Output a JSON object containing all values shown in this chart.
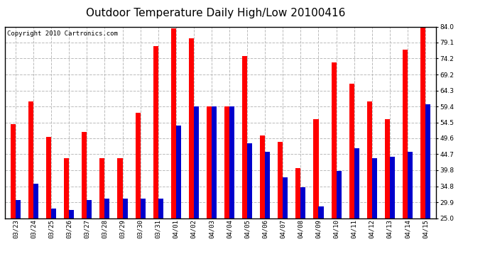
{
  "title": "Outdoor Temperature Daily High/Low 20100416",
  "copyright": "Copyright 2010 Cartronics.com",
  "dates": [
    "03/23",
    "03/24",
    "03/25",
    "03/26",
    "03/27",
    "03/28",
    "03/29",
    "03/30",
    "03/31",
    "04/01",
    "04/02",
    "04/03",
    "04/04",
    "04/05",
    "04/06",
    "04/07",
    "04/08",
    "04/09",
    "04/10",
    "04/11",
    "04/12",
    "04/13",
    "04/14",
    "04/15"
  ],
  "highs": [
    54.0,
    61.0,
    50.0,
    43.5,
    51.5,
    43.5,
    43.5,
    57.5,
    78.0,
    83.5,
    80.5,
    59.5,
    59.5,
    75.0,
    50.5,
    48.5,
    40.5,
    55.5,
    73.0,
    66.5,
    61.0,
    55.5,
    77.0,
    84.0
  ],
  "lows": [
    30.5,
    35.5,
    28.0,
    27.5,
    30.5,
    31.0,
    31.0,
    31.0,
    31.0,
    53.5,
    59.5,
    59.5,
    59.5,
    48.0,
    45.5,
    37.5,
    34.5,
    28.5,
    39.5,
    46.5,
    43.5,
    44.0,
    45.5,
    60.0
  ],
  "high_color": "#ff0000",
  "low_color": "#0000cc",
  "bg_color": "#ffffff",
  "plot_bg_color": "#ffffff",
  "grid_color": "#bbbbbb",
  "ymin": 25.0,
  "ymax": 84.0,
  "yticks": [
    25.0,
    29.9,
    34.8,
    39.8,
    44.7,
    49.6,
    54.5,
    59.4,
    64.3,
    69.2,
    74.2,
    79.1,
    84.0
  ],
  "title_fontsize": 11,
  "copyright_fontsize": 6.5,
  "tick_fontsize": 6.5,
  "bar_width": 0.28
}
